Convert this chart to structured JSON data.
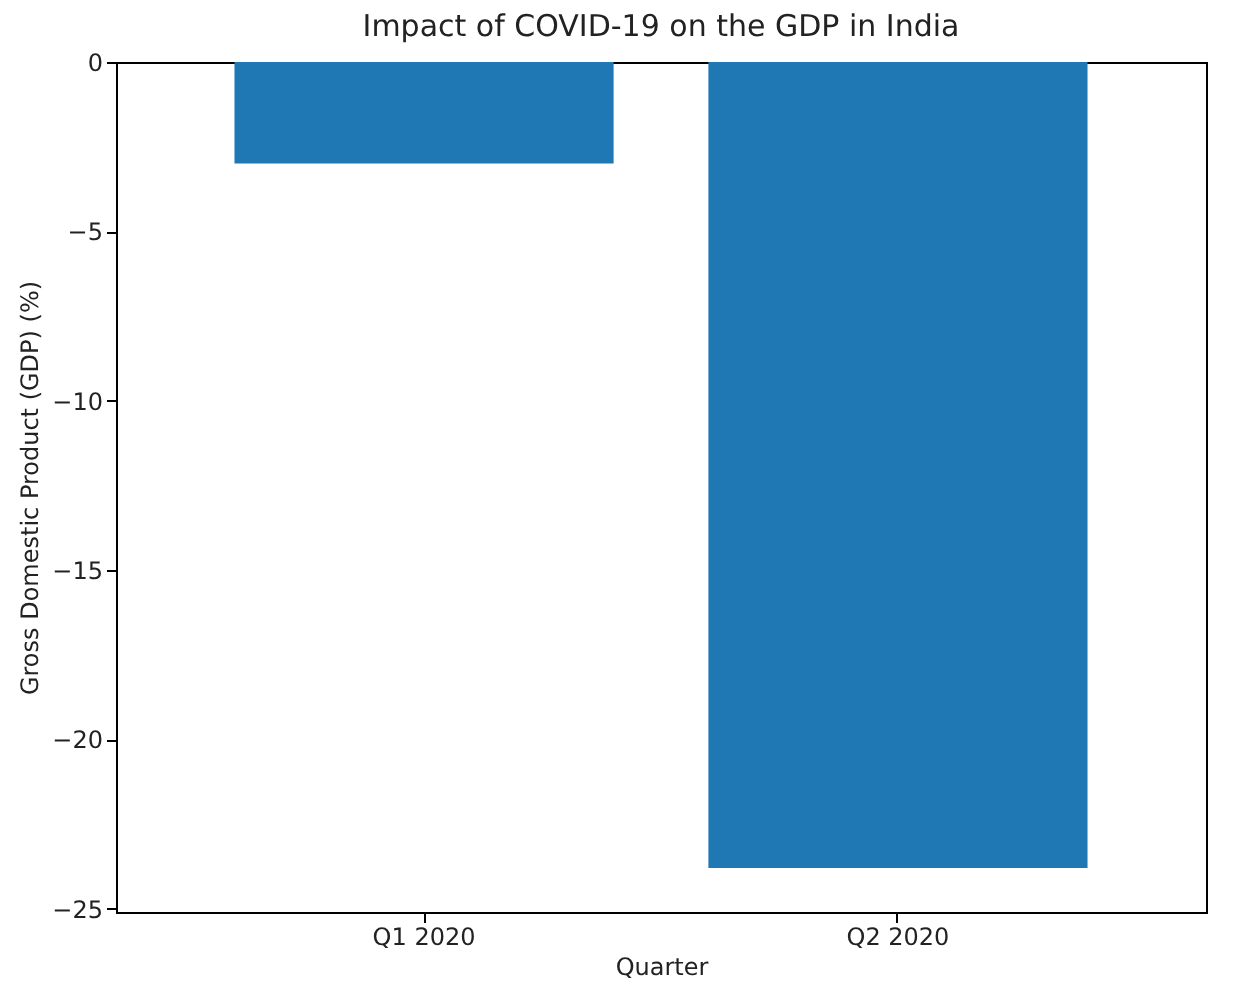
{
  "chart_data": {
    "type": "bar",
    "title": "Impact of COVID-19 on the GDP in India",
    "xlabel": "Quarter",
    "ylabel": "Gross Domestic Product (GDP) (%)",
    "categories": [
      "Q1 2020",
      "Q2 2020"
    ],
    "values": [
      -3.0,
      -23.8
    ],
    "color": "#1f77b4",
    "ylim": [
      -25.1,
      0
    ],
    "yticks": [
      -25,
      -20,
      -15,
      -10,
      -5,
      0
    ],
    "grid": false
  }
}
